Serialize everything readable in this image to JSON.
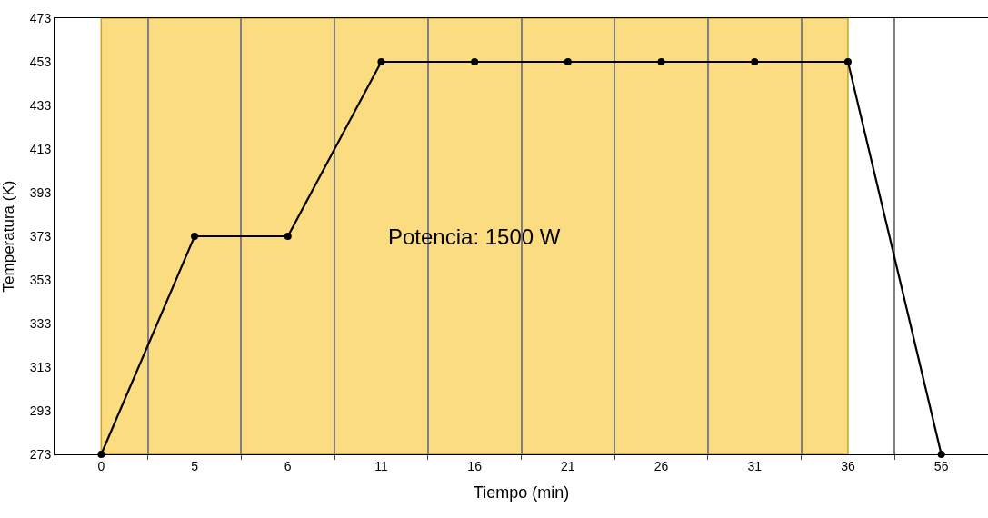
{
  "chart_data": {
    "type": "line",
    "xlabel": "Tiempo (min)",
    "ylabel": "Temperatura (K)",
    "categories": [
      "0",
      "5",
      "6",
      "11",
      "16",
      "21",
      "26",
      "31",
      "36",
      "56"
    ],
    "series": [
      {
        "color": "#000000",
        "values": [
          273,
          373,
          373,
          453,
          453,
          453,
          453,
          453,
          453,
          273
        ]
      }
    ],
    "ylim": [
      273,
      473
    ],
    "yticks": [
      273,
      293,
      313,
      333,
      353,
      373,
      393,
      413,
      433,
      453,
      473
    ],
    "grid": "x",
    "marker": "circle",
    "line_style": "solid",
    "bands": [
      {
        "axis": "x",
        "from": "0",
        "to": "36",
        "label": "Potencia: 1500 W",
        "color": "#fcdc80"
      }
    ]
  }
}
